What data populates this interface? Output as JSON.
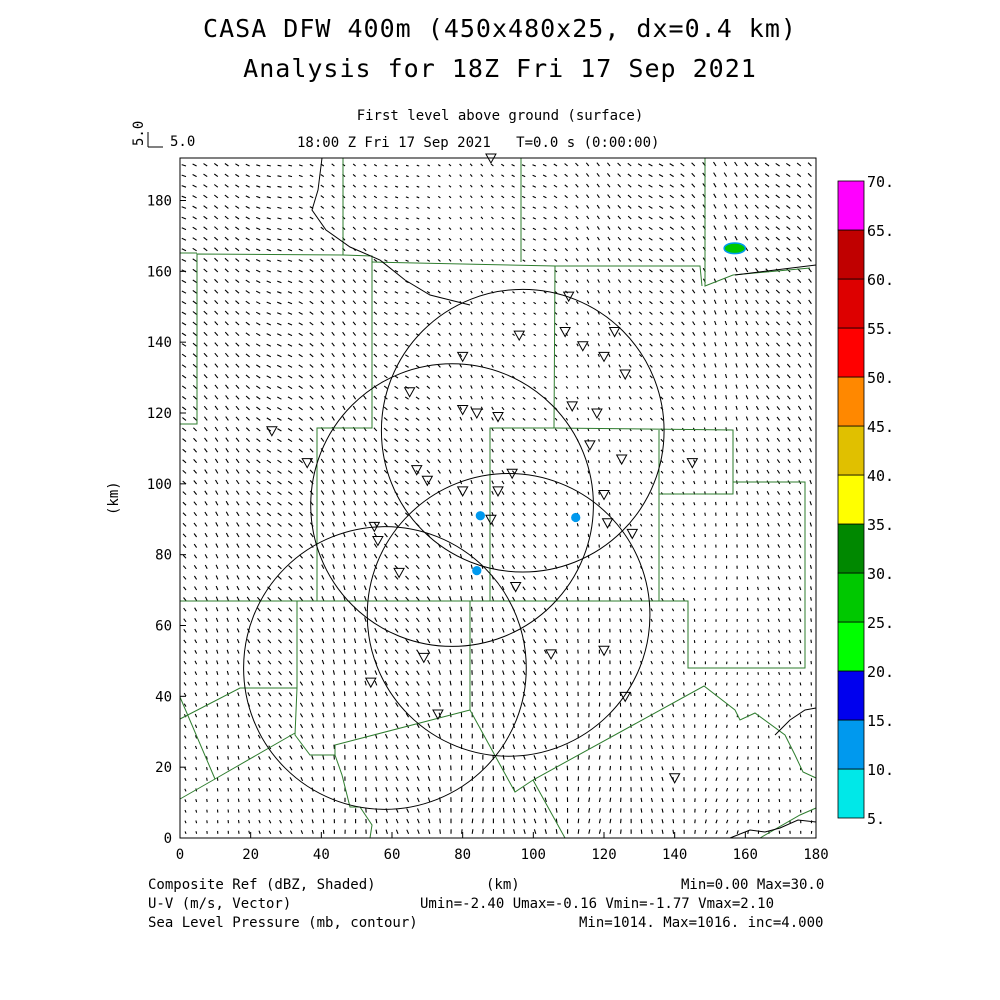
{
  "header": {
    "title_line1": "CASA DFW 400m (450x480x25, dx=0.4 km)",
    "title_line2": "Analysis for 18Z Fri 17 Sep 2021",
    "level": "First level above ground (surface)",
    "valid_time": "18:00 Z Fri 17 Sep 2021",
    "time_step": "T=0.0 s (0:00:00)",
    "ref_vector_left": "5.0",
    "ref_vector_right": "5.0"
  },
  "axes": {
    "x_label": "(km)",
    "y_label": "(km)",
    "x_range": [
      0,
      180
    ],
    "y_range": [
      0,
      192
    ],
    "x_ticks": [
      "0",
      "20",
      "40",
      "60",
      "80",
      "100",
      "120",
      "140",
      "160",
      "180"
    ],
    "y_ticks": [
      "0",
      "20",
      "40",
      "60",
      "80",
      "100",
      "120",
      "140",
      "160",
      "180"
    ]
  },
  "colorbar": {
    "labels": [
      "5.",
      "10.",
      "15.",
      "20.",
      "25.",
      "30.",
      "35.",
      "40.",
      "45.",
      "50.",
      "55.",
      "60.",
      "65.",
      "70."
    ],
    "colors": [
      "#00e8e8",
      "#0099ee",
      "#0000ee",
      "#00ff00",
      "#00c800",
      "#008800",
      "#ffff00",
      "#e0c000",
      "#ff8800",
      "#ff0000",
      "#dd0000",
      "#c00000",
      "#ff00ff"
    ]
  },
  "footer": {
    "field1": "Composite Ref (dBZ, Shaded)",
    "field1_stats": "Min=0.00 Max=30.0",
    "field2": "U-V (m/s, Vector)",
    "field2_stats": "Umin=-2.40 Umax=-0.16 Vmin=-1.77 Vmax=2.10",
    "field3": "Sea Level Pressure (mb, contour)",
    "field3_stats": "Min=1014. Max=1016. inc=4.000",
    "x_unit": "(km)"
  },
  "map_data": {
    "radar_rings": [
      {
        "cx": 77,
        "cy": 94,
        "r": 40
      },
      {
        "cx": 97,
        "cy": 115,
        "r": 40
      },
      {
        "cx": 58,
        "cy": 48,
        "r": 40
      },
      {
        "cx": 93,
        "cy": 63,
        "r": 40
      }
    ],
    "stations": [
      [
        88,
        192
      ],
      [
        110,
        153
      ],
      [
        96,
        142
      ],
      [
        109,
        143
      ],
      [
        123,
        143
      ],
      [
        80,
        136
      ],
      [
        114,
        139
      ],
      [
        120,
        136
      ],
      [
        126,
        131
      ],
      [
        65,
        126
      ],
      [
        80,
        121
      ],
      [
        84,
        120
      ],
      [
        90,
        119
      ],
      [
        111,
        122
      ],
      [
        118,
        120
      ],
      [
        26,
        115
      ],
      [
        116,
        111
      ],
      [
        125,
        107
      ],
      [
        36,
        106
      ],
      [
        67,
        104
      ],
      [
        70,
        101
      ],
      [
        145,
        106
      ],
      [
        94,
        103
      ],
      [
        80,
        98
      ],
      [
        90,
        98
      ],
      [
        120,
        97
      ],
      [
        88,
        90
      ],
      [
        55,
        88
      ],
      [
        56,
        84
      ],
      [
        121,
        89
      ],
      [
        128,
        86
      ],
      [
        62,
        75
      ],
      [
        95,
        71
      ],
      [
        69,
        51
      ],
      [
        105,
        52
      ],
      [
        120,
        53
      ],
      [
        54,
        44
      ],
      [
        126,
        40
      ],
      [
        73,
        35
      ],
      [
        140,
        17
      ]
    ],
    "echoes": [
      {
        "x": 157,
        "y": 166.5,
        "rx": 3,
        "ry": 1.5,
        "color": "#00c800"
      },
      {
        "x": 85,
        "y": 91,
        "rx": 1.1,
        "ry": 1.1,
        "color": "#0099ee"
      },
      {
        "x": 112,
        "y": 90.5,
        "rx": 1.1,
        "ry": 1.1,
        "color": "#0099ee"
      },
      {
        "x": 84,
        "y": 75.5,
        "rx": 1.1,
        "ry": 1.1,
        "color": "#0099ee"
      }
    ]
  }
}
